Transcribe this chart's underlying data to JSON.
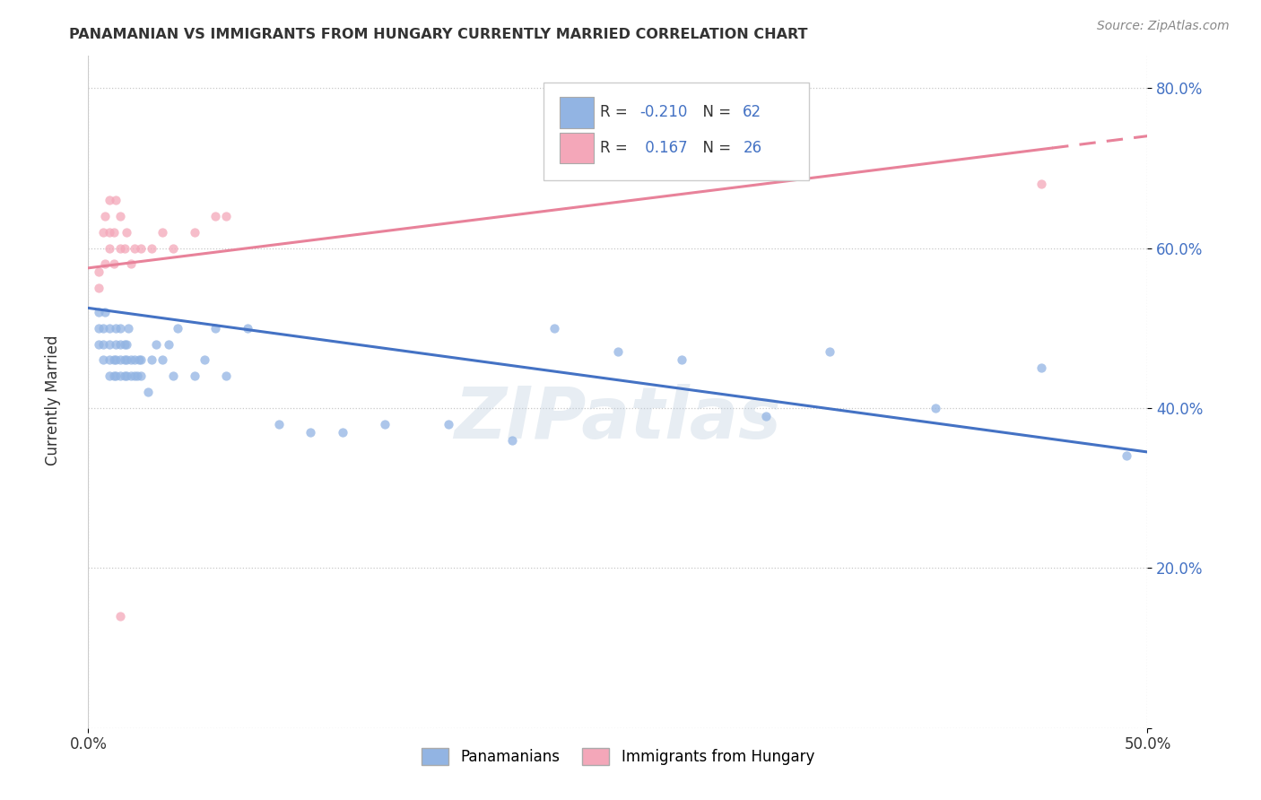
{
  "title": "PANAMANIAN VS IMMIGRANTS FROM HUNGARY CURRENTLY MARRIED CORRELATION CHART",
  "source": "Source: ZipAtlas.com",
  "ylabel": "Currently Married",
  "xlim": [
    0.0,
    0.5
  ],
  "ylim": [
    0.0,
    0.84
  ],
  "ytick_vals": [
    0.0,
    0.2,
    0.4,
    0.6,
    0.8
  ],
  "ytick_labels": [
    "",
    "20.0%",
    "40.0%",
    "60.0%",
    "80.0%"
  ],
  "blue_R": -0.21,
  "blue_N": 62,
  "pink_R": 0.167,
  "pink_N": 26,
  "blue_color": "#92B4E3",
  "pink_color": "#F4A7B9",
  "blue_line_color": "#4472C4",
  "pink_line_color": "#E8829A",
  "legend_blue_label": "Panamanians",
  "legend_pink_label": "Immigrants from Hungary",
  "blue_line_x0": 0.0,
  "blue_line_y0": 0.525,
  "blue_line_x1": 0.5,
  "blue_line_y1": 0.345,
  "pink_line_solid_x0": 0.0,
  "pink_line_solid_y0": 0.575,
  "pink_line_solid_x1": 0.455,
  "pink_line_solid_y1": 0.725,
  "pink_line_dash_x0": 0.455,
  "pink_line_dash_y0": 0.725,
  "pink_line_dash_x1": 0.5,
  "pink_line_dash_y1": 0.74,
  "blue_scatter_x": [
    0.005,
    0.005,
    0.005,
    0.007,
    0.007,
    0.007,
    0.008,
    0.01,
    0.01,
    0.01,
    0.01,
    0.012,
    0.012,
    0.013,
    0.013,
    0.013,
    0.013,
    0.015,
    0.015,
    0.015,
    0.015,
    0.017,
    0.017,
    0.017,
    0.018,
    0.018,
    0.018,
    0.019,
    0.02,
    0.02,
    0.022,
    0.022,
    0.023,
    0.024,
    0.025,
    0.025,
    0.028,
    0.03,
    0.032,
    0.035,
    0.038,
    0.04,
    0.042,
    0.05,
    0.055,
    0.06,
    0.065,
    0.075,
    0.09,
    0.105,
    0.12,
    0.14,
    0.17,
    0.2,
    0.22,
    0.25,
    0.28,
    0.32,
    0.35,
    0.4,
    0.45,
    0.49
  ],
  "blue_scatter_y": [
    0.48,
    0.5,
    0.52,
    0.46,
    0.48,
    0.5,
    0.52,
    0.44,
    0.46,
    0.48,
    0.5,
    0.44,
    0.46,
    0.44,
    0.46,
    0.48,
    0.5,
    0.44,
    0.46,
    0.48,
    0.5,
    0.44,
    0.46,
    0.48,
    0.44,
    0.46,
    0.48,
    0.5,
    0.44,
    0.46,
    0.44,
    0.46,
    0.44,
    0.46,
    0.44,
    0.46,
    0.42,
    0.46,
    0.48,
    0.46,
    0.48,
    0.44,
    0.5,
    0.44,
    0.46,
    0.5,
    0.44,
    0.5,
    0.38,
    0.37,
    0.37,
    0.38,
    0.38,
    0.36,
    0.5,
    0.47,
    0.46,
    0.39,
    0.47,
    0.4,
    0.45,
    0.34
  ],
  "pink_scatter_x": [
    0.005,
    0.005,
    0.007,
    0.008,
    0.008,
    0.01,
    0.01,
    0.01,
    0.012,
    0.012,
    0.013,
    0.015,
    0.015,
    0.017,
    0.018,
    0.02,
    0.022,
    0.025,
    0.03,
    0.035,
    0.04,
    0.05,
    0.06,
    0.065,
    0.45,
    0.015
  ],
  "pink_scatter_y": [
    0.55,
    0.57,
    0.62,
    0.58,
    0.64,
    0.6,
    0.62,
    0.66,
    0.58,
    0.62,
    0.66,
    0.6,
    0.64,
    0.6,
    0.62,
    0.58,
    0.6,
    0.6,
    0.6,
    0.62,
    0.6,
    0.62,
    0.64,
    0.64,
    0.68,
    0.14
  ]
}
